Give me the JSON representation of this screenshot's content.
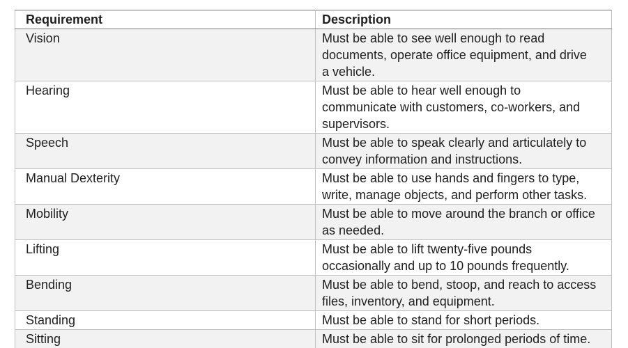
{
  "table": {
    "columns": [
      {
        "label": "Requirement"
      },
      {
        "label": "Description"
      }
    ],
    "rows": [
      {
        "requirement": "Vision",
        "description": "Must be able to see well enough to read\ndocuments, operate office equipment, and drive\na vehicle."
      },
      {
        "requirement": "Hearing",
        "description": "Must be able to hear well enough to\ncommunicate with customers, co-workers, and\nsupervisors."
      },
      {
        "requirement": "Speech",
        "description": "Must be able to speak clearly and articulately to\nconvey information and instructions."
      },
      {
        "requirement": "Manual Dexterity",
        "description": "Must be able to use hands and fingers to type,\nwrite, manage objects, and perform other tasks."
      },
      {
        "requirement": "Mobility",
        "description": "Must be able to move around the branch or office\nas needed."
      },
      {
        "requirement": "Lifting",
        "description": "Must be able to lift twenty-five pounds\noccasionally and up to 10 pounds frequently."
      },
      {
        "requirement": "Bending",
        "description": "Must be able to bend, stoop, and reach to access\nfiles, inventory, and equipment."
      },
      {
        "requirement": "Standing",
        "description": "Must be able to stand for short periods."
      },
      {
        "requirement": "Sitting",
        "description": "Must be able to sit for prolonged periods of time."
      }
    ],
    "colors": {
      "banded_row_bg": "#f2f2f2",
      "row_bg": "#ffffff",
      "inner_border": "#bfbfbf",
      "outer_border": "#737373",
      "text": "#1f1f1f"
    }
  }
}
